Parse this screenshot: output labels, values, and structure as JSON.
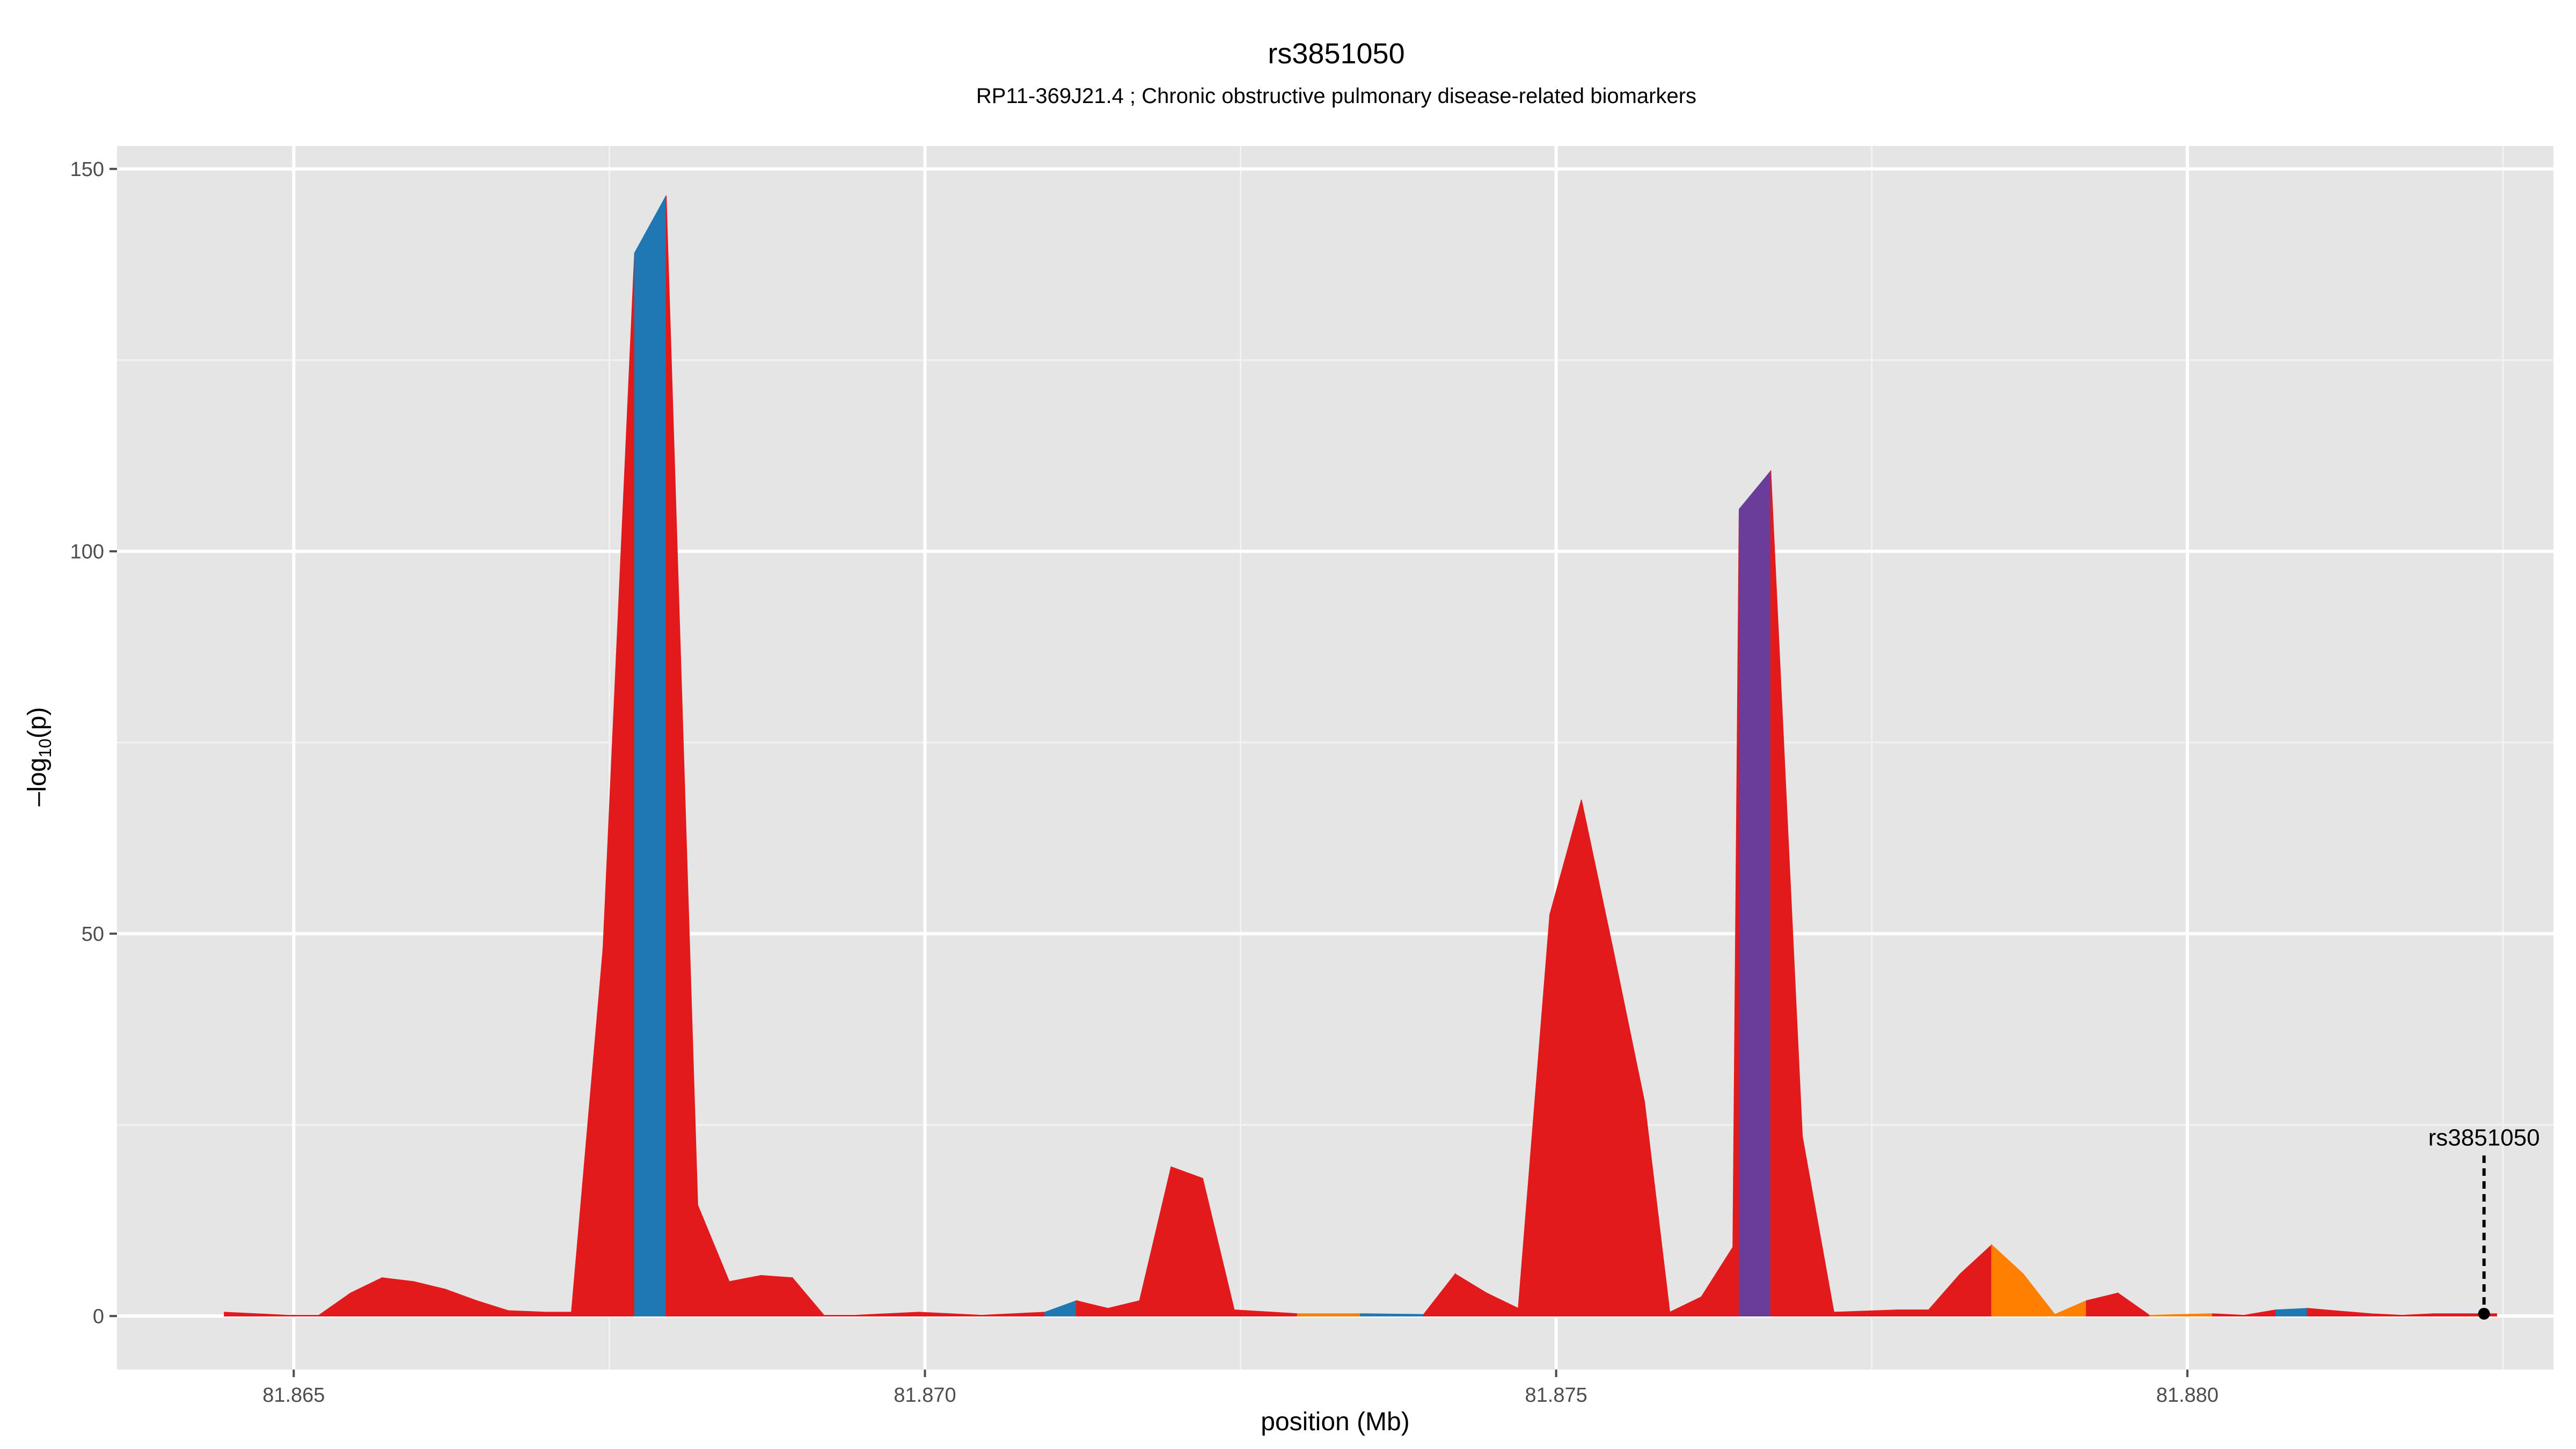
{
  "chart_data": {
    "type": "area",
    "title": "rs3851050",
    "subtitle": "RP11-369J21.4 ; Chronic obstructive pulmonary disease-related biomarkers",
    "xlabel": "position (Mb)",
    "ylabel_main": "–log",
    "ylabel_sub": "10",
    "ylabel_tail": "(p)",
    "xlim": [
      81.8636,
      81.8829
    ],
    "ylim": [
      -7,
      153
    ],
    "x_ticks": [
      81.865,
      81.87,
      81.875,
      81.88
    ],
    "x_tick_labels": [
      "81.865",
      "81.870",
      "81.875",
      "81.880"
    ],
    "y_ticks": [
      0,
      50,
      100,
      150
    ],
    "y_tick_labels": [
      "0",
      "50",
      "100",
      "150"
    ],
    "grid": true,
    "colors": {
      "red": "#E31A1C",
      "blue": "#1F78B4",
      "purple": "#6A3D9A",
      "orange": "#FF7F00",
      "panel": "#E5E5E5",
      "grid": "#FFFFFF"
    },
    "points": [
      {
        "x": 81.86445,
        "y": 0.5,
        "c": "red"
      },
      {
        "x": 81.86495,
        "y": 0.1,
        "c": "red"
      },
      {
        "x": 81.8652,
        "y": 0.1,
        "c": "red"
      },
      {
        "x": 81.86545,
        "y": 3.0,
        "c": "red"
      },
      {
        "x": 81.8657,
        "y": 5.0,
        "c": "red"
      },
      {
        "x": 81.86595,
        "y": 4.5,
        "c": "red"
      },
      {
        "x": 81.8662,
        "y": 3.5,
        "c": "red"
      },
      {
        "x": 81.86645,
        "y": 2.0,
        "c": "red"
      },
      {
        "x": 81.8667,
        "y": 0.7,
        "c": "red"
      },
      {
        "x": 81.867,
        "y": 0.5,
        "c": "red"
      },
      {
        "x": 81.8672,
        "y": 0.5,
        "c": "red"
      },
      {
        "x": 81.86745,
        "y": 48.0,
        "c": "red"
      },
      {
        "x": 81.8677,
        "y": 139.0,
        "c": "blue"
      },
      {
        "x": 81.86795,
        "y": 146.5,
        "c": "red"
      },
      {
        "x": 81.8682,
        "y": 14.5,
        "c": "red"
      },
      {
        "x": 81.86845,
        "y": 4.5,
        "c": "red"
      },
      {
        "x": 81.8687,
        "y": 5.3,
        "c": "red"
      },
      {
        "x": 81.86895,
        "y": 5.0,
        "c": "red"
      },
      {
        "x": 81.8692,
        "y": 0.1,
        "c": "red"
      },
      {
        "x": 81.86945,
        "y": 0.1,
        "c": "red"
      },
      {
        "x": 81.86995,
        "y": 0.5,
        "c": "red"
      },
      {
        "x": 81.87045,
        "y": 0.1,
        "c": "red"
      },
      {
        "x": 81.87095,
        "y": 0.5,
        "c": "blue"
      },
      {
        "x": 81.8712,
        "y": 2.0,
        "c": "red"
      },
      {
        "x": 81.87145,
        "y": 1.0,
        "c": "red"
      },
      {
        "x": 81.8717,
        "y": 2.0,
        "c": "red"
      },
      {
        "x": 81.87195,
        "y": 19.5,
        "c": "red"
      },
      {
        "x": 81.8722,
        "y": 18.0,
        "c": "red"
      },
      {
        "x": 81.87245,
        "y": 0.8,
        "c": "red"
      },
      {
        "x": 81.87295,
        "y": 0.3,
        "c": "orange"
      },
      {
        "x": 81.87345,
        "y": 0.3,
        "c": "blue"
      },
      {
        "x": 81.87395,
        "y": 0.2,
        "c": "red"
      },
      {
        "x": 81.8742,
        "y": 5.5,
        "c": "red"
      },
      {
        "x": 81.87445,
        "y": 3.0,
        "c": "red"
      },
      {
        "x": 81.8747,
        "y": 1.0,
        "c": "red"
      },
      {
        "x": 81.87495,
        "y": 52.5,
        "c": "red"
      },
      {
        "x": 81.8752,
        "y": 67.5,
        "c": "red"
      },
      {
        "x": 81.87545,
        "y": 48.0,
        "c": "red"
      },
      {
        "x": 81.8757,
        "y": 28.0,
        "c": "red"
      },
      {
        "x": 81.8759,
        "y": 0.5,
        "c": "red"
      },
      {
        "x": 81.87615,
        "y": 2.5,
        "c": "red"
      },
      {
        "x": 81.8764,
        "y": 9.0,
        "c": "red"
      },
      {
        "x": 81.87645,
        "y": 105.5,
        "c": "purple"
      },
      {
        "x": 81.8767,
        "y": 110.5,
        "c": "red"
      },
      {
        "x": 81.87695,
        "y": 23.5,
        "c": "red"
      },
      {
        "x": 81.8772,
        "y": 0.5,
        "c": "red"
      },
      {
        "x": 81.8777,
        "y": 0.8,
        "c": "red"
      },
      {
        "x": 81.87795,
        "y": 0.8,
        "c": "red"
      },
      {
        "x": 81.8782,
        "y": 5.5,
        "c": "red"
      },
      {
        "x": 81.87845,
        "y": 9.3,
        "c": "orange"
      },
      {
        "x": 81.8787,
        "y": 5.5,
        "c": "orange"
      },
      {
        "x": 81.87895,
        "y": 0.2,
        "c": "orange"
      },
      {
        "x": 81.8792,
        "y": 2.0,
        "c": "red"
      },
      {
        "x": 81.87945,
        "y": 3.0,
        "c": "red"
      },
      {
        "x": 81.8797,
        "y": 0.1,
        "c": "orange"
      },
      {
        "x": 81.8802,
        "y": 0.3,
        "c": "red"
      },
      {
        "x": 81.88045,
        "y": 0.1,
        "c": "red"
      },
      {
        "x": 81.8807,
        "y": 0.8,
        "c": "blue"
      },
      {
        "x": 81.88095,
        "y": 1.0,
        "c": "red"
      },
      {
        "x": 81.88145,
        "y": 0.3,
        "c": "red"
      },
      {
        "x": 81.8817,
        "y": 0.1,
        "c": "red"
      },
      {
        "x": 81.88195,
        "y": 0.3,
        "c": "red"
      },
      {
        "x": 81.88245,
        "y": 0.3,
        "c": "red"
      }
    ],
    "annotation": {
      "label": "rs3851050",
      "x": 81.88235,
      "y": 0.3
    }
  }
}
